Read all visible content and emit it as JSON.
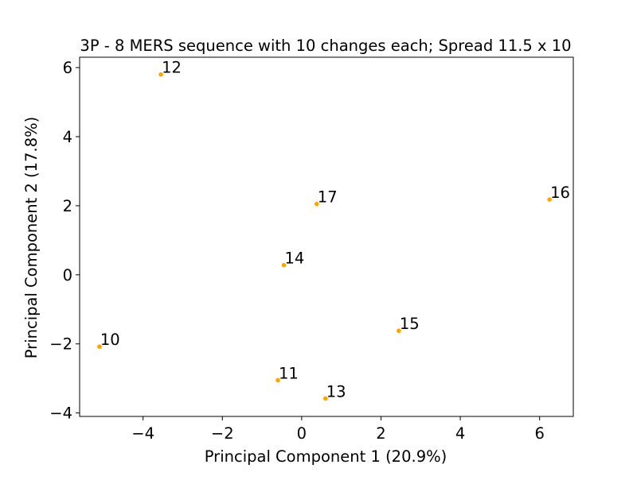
{
  "chart_data": {
    "type": "scatter",
    "title": "3P - 8 MERS sequence with 10 changes each; Spread 11.5 x 10",
    "xlabel": "Principal Component 1 (20.9%)",
    "ylabel": "Principal Component 2 (17.8%)",
    "xlim": [
      -5.6,
      6.85
    ],
    "ylim": [
      -4.1,
      6.3
    ],
    "xticks": [
      -4,
      -2,
      0,
      2,
      4,
      6
    ],
    "yticks": [
      -4,
      -2,
      0,
      2,
      4,
      6
    ],
    "xtick_labels": [
      "−4",
      "−2",
      "0",
      "2",
      "4",
      "6"
    ],
    "ytick_labels": [
      "−4",
      "−2",
      "0",
      "2",
      "4",
      "6"
    ],
    "grid": false,
    "marker_color": "#FFA500",
    "points": [
      {
        "label": "10",
        "x": -5.1,
        "y": -2.08
      },
      {
        "label": "11",
        "x": -0.6,
        "y": -3.05
      },
      {
        "label": "12",
        "x": -3.55,
        "y": 5.8
      },
      {
        "label": "13",
        "x": 0.6,
        "y": -3.58
      },
      {
        "label": "14",
        "x": -0.45,
        "y": 0.28
      },
      {
        "label": "15",
        "x": 2.45,
        "y": -1.62
      },
      {
        "label": "16",
        "x": 6.25,
        "y": 2.18
      },
      {
        "label": "17",
        "x": 0.38,
        "y": 2.05
      }
    ]
  }
}
